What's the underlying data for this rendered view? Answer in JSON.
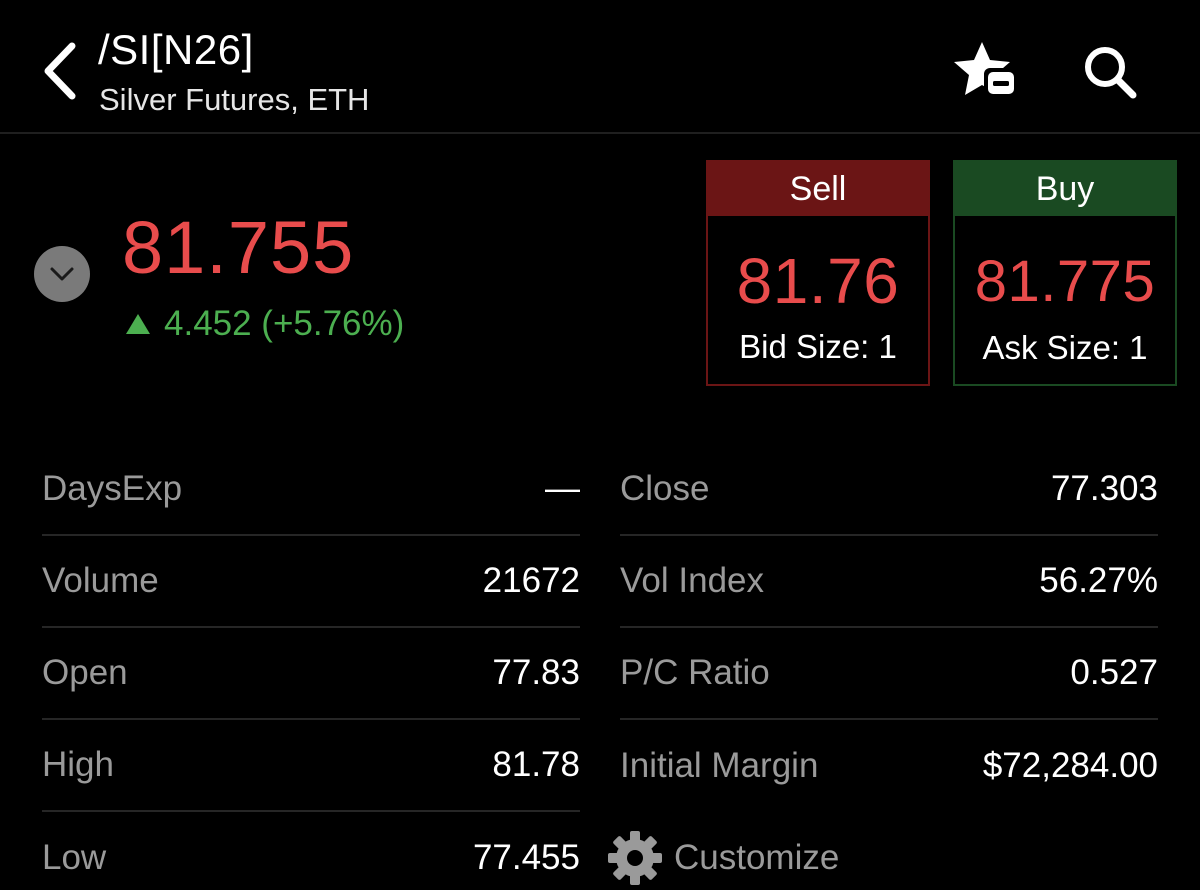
{
  "header": {
    "symbol": "/SI[N26]",
    "description": "Silver Futures, ETH"
  },
  "quote": {
    "last": "81.755",
    "change": "4.452 (+5.76%)",
    "direction": "up",
    "last_color": "#e84c4c",
    "change_color": "#4caf50"
  },
  "sell": {
    "label": "Sell",
    "price": "81.76",
    "size_text": "Bid Size: 1",
    "header_color": "#6b1515"
  },
  "buy": {
    "label": "Buy",
    "price": "81.775",
    "size_text": "Ask Size: 1",
    "header_color": "#1a4a22"
  },
  "stats_left": [
    {
      "label": "DaysExp",
      "value": "—"
    },
    {
      "label": "Volume",
      "value": "21672"
    },
    {
      "label": "Open",
      "value": "77.83"
    },
    {
      "label": "High",
      "value": "81.78"
    },
    {
      "label": "Low",
      "value": "77.455"
    }
  ],
  "stats_right": [
    {
      "label": "Close",
      "value": "77.303"
    },
    {
      "label": "Vol Index",
      "value": "56.27%"
    },
    {
      "label": "P/C Ratio",
      "value": "0.527"
    },
    {
      "label": "Initial Margin",
      "value": "$72,284.00"
    }
  ],
  "customize": {
    "label": "Customize",
    "icon": "gear-icon"
  },
  "icons": {
    "back": "chevron-left-icon",
    "watchlist": "star-remove-icon",
    "search": "search-icon",
    "collapse": "chevron-down-icon"
  }
}
